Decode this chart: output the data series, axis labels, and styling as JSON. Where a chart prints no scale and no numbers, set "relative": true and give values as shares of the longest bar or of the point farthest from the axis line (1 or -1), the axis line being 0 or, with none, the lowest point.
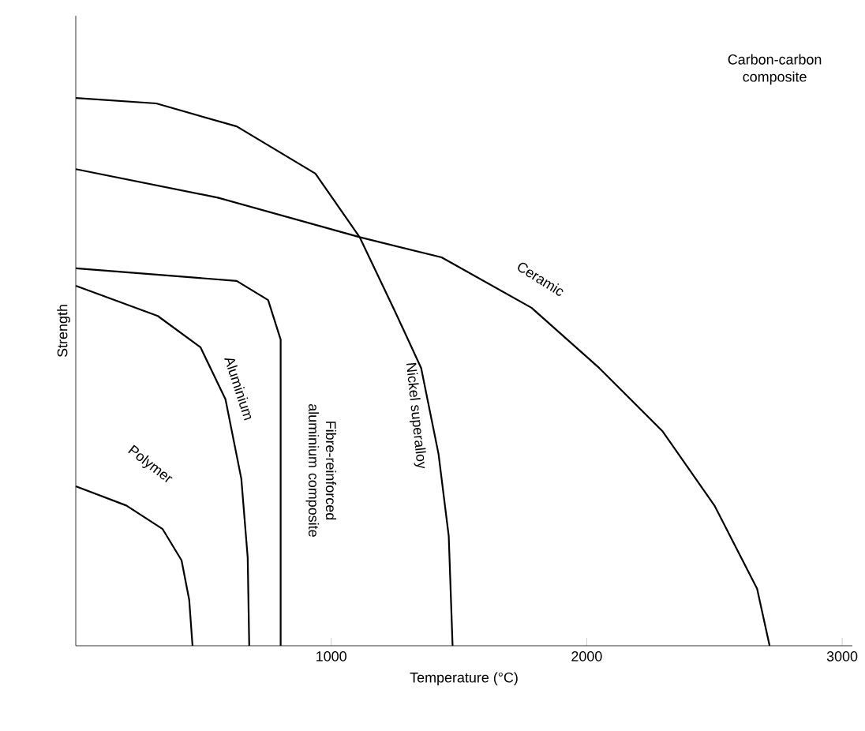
{
  "chart_data": {
    "type": "line",
    "relative": true,
    "xlabel": "Temperature (°C)",
    "ylabel": "Strength",
    "xlim": [
      0,
      3040
    ],
    "xticks": [
      1000,
      2000,
      3000
    ],
    "marker": "none",
    "line_style": "solid",
    "annotations": [
      "Carbon-carbon composite"
    ],
    "series": [
      {
        "name": "Polymer",
        "color": "#000000",
        "x": [
          0,
          198,
          340,
          414,
          444,
          457
        ],
        "values": [
          0.291,
          0.256,
          0.213,
          0.156,
          0.084,
          0
        ]
      },
      {
        "name": "Aluminium",
        "color": "#000000",
        "x": [
          0,
          321,
          488,
          586,
          648,
          673,
          679
        ],
        "values": [
          0.657,
          0.602,
          0.545,
          0.45,
          0.305,
          0.161,
          0
        ]
      },
      {
        "name": "Fibre-reinforced aluminium composite",
        "color": "#000000",
        "x": [
          0,
          630,
          753,
          802,
          802,
          802
        ],
        "values": [
          0.689,
          0.666,
          0.631,
          0.559,
          0.314,
          0
        ]
      },
      {
        "name": "Nickel superalloy",
        "color": "#000000",
        "x": [
          0,
          315,
          630,
          938,
          1111,
          1250,
          1352,
          1420,
          1460,
          1475
        ],
        "values": [
          1.0,
          0.99,
          0.948,
          0.862,
          0.746,
          0.61,
          0.507,
          0.35,
          0.2,
          0
        ]
      },
      {
        "name": "Ceramic",
        "color": "#000000",
        "x": [
          0,
          556,
          1111,
          1432,
          1784,
          2049,
          2296,
          2500,
          2667,
          2716
        ],
        "values": [
          0.87,
          0.818,
          0.746,
          0.709,
          0.617,
          0.507,
          0.392,
          0.256,
          0.104,
          0
        ]
      }
    ]
  }
}
